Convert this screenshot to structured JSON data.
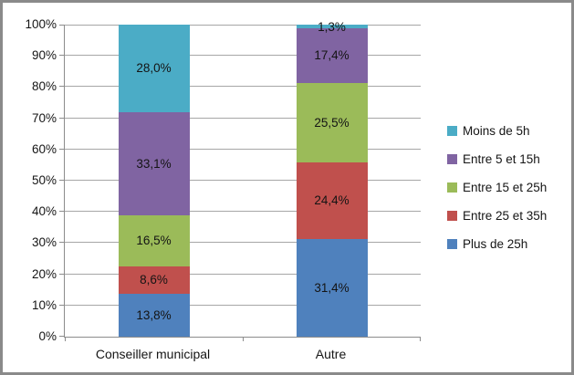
{
  "chart_data": {
    "type": "bar",
    "subtype": "stacked-100-percent-column",
    "title": "",
    "xlabel": "",
    "ylabel": "",
    "categories": [
      "Conseiller municipal",
      "Autre"
    ],
    "y_ticks": [
      "0%",
      "10%",
      "20%",
      "30%",
      "40%",
      "50%",
      "60%",
      "70%",
      "80%",
      "90%",
      "100%"
    ],
    "ylim": [
      0,
      100
    ],
    "grid": true,
    "legend_position": "right",
    "stack_order_bottom_to_top": [
      "Plus de 25h",
      "Entre 25 et 35h",
      "Entre 15 et 25h",
      "Entre 5 et 15h",
      "Moins de 5h"
    ],
    "series": [
      {
        "name": "Plus de 25h",
        "color": "#4F81BD",
        "values": [
          13.8,
          31.4
        ],
        "labels": [
          "13,8%",
          "31,4%"
        ]
      },
      {
        "name": "Entre 25 et 35h",
        "color": "#C0504D",
        "values": [
          8.6,
          24.4
        ],
        "labels": [
          "8,6%",
          "24,4%"
        ]
      },
      {
        "name": "Entre 15 et 25h",
        "color": "#9BBB59",
        "values": [
          16.5,
          25.5
        ],
        "labels": [
          "16,5%",
          "25,5%"
        ]
      },
      {
        "name": "Entre 5 et 15h",
        "color": "#8064A2",
        "values": [
          33.1,
          17.4
        ],
        "labels": [
          "33,1%",
          "17,4%"
        ]
      },
      {
        "name": "Moins de 5h",
        "color": "#4BACC6",
        "values": [
          28.0,
          1.3
        ],
        "labels": [
          "28,0%",
          "1,3%"
        ]
      }
    ]
  },
  "legend": {
    "items": [
      {
        "label": "Moins de 5h",
        "color": "#4BACC6"
      },
      {
        "label": "Entre 5 et 15h",
        "color": "#8064A2"
      },
      {
        "label": "Entre 15 et 25h",
        "color": "#9BBB59"
      },
      {
        "label": "Entre 25 et 35h",
        "color": "#C0504D"
      },
      {
        "label": "Plus de 25h",
        "color": "#4F81BD"
      }
    ]
  },
  "colors": {
    "frame_border": "#8a8a8a",
    "axis": "#8c8c8c",
    "gridline": "#a6a6a6",
    "background": "#ffffff"
  }
}
